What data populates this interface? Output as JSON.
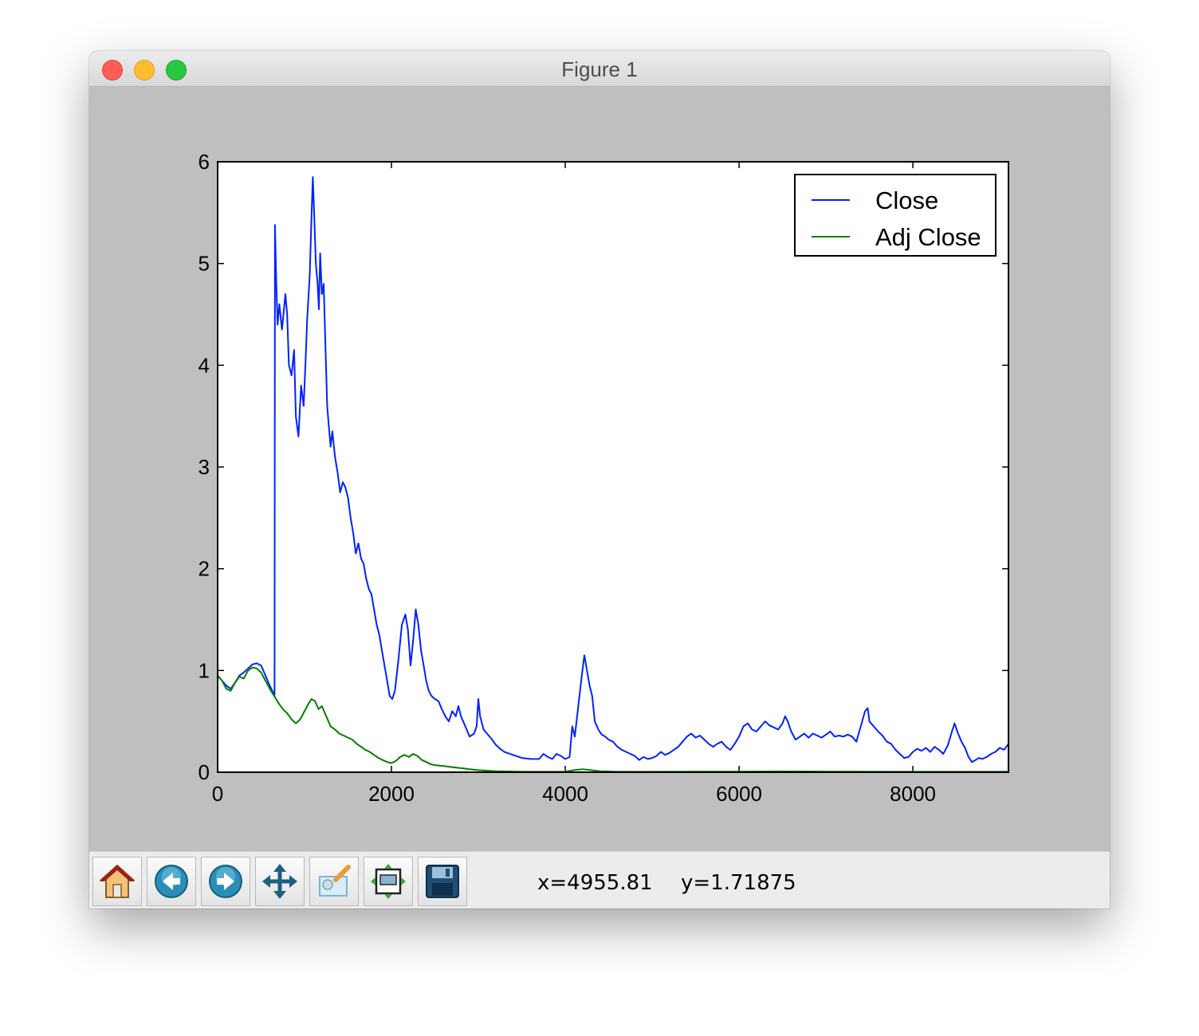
{
  "window": {
    "title": "Figure 1",
    "controls": [
      "close",
      "minimize",
      "zoom"
    ]
  },
  "chart_data": {
    "type": "line",
    "title": "",
    "xlabel": "",
    "ylabel": "",
    "xlim": [
      0,
      9100
    ],
    "ylim": [
      0,
      6
    ],
    "xticks": [
      "0",
      "2000",
      "4000",
      "6000",
      "8000"
    ],
    "yticks": [
      "0",
      "1",
      "2",
      "3",
      "4",
      "5",
      "6"
    ],
    "grid": false,
    "legend_position": "top-right",
    "series": [
      {
        "name": "Close",
        "color": "#0022ff",
        "points": [
          [
            0,
            0.95
          ],
          [
            50,
            0.9
          ],
          [
            100,
            0.85
          ],
          [
            150,
            0.82
          ],
          [
            200,
            0.88
          ],
          [
            250,
            0.95
          ],
          [
            300,
            0.98
          ],
          [
            350,
            1.02
          ],
          [
            400,
            1.06
          ],
          [
            450,
            1.07
          ],
          [
            500,
            1.05
          ],
          [
            550,
            0.95
          ],
          [
            600,
            0.85
          ],
          [
            640,
            0.78
          ],
          [
            655,
            0.76
          ],
          [
            660,
            5.38
          ],
          [
            675,
            4.8
          ],
          [
            690,
            4.4
          ],
          [
            710,
            4.6
          ],
          [
            740,
            4.35
          ],
          [
            780,
            4.7
          ],
          [
            800,
            4.5
          ],
          [
            820,
            4.0
          ],
          [
            850,
            3.9
          ],
          [
            880,
            4.15
          ],
          [
            900,
            3.5
          ],
          [
            930,
            3.3
          ],
          [
            960,
            3.8
          ],
          [
            990,
            3.6
          ],
          [
            1010,
            4.0
          ],
          [
            1030,
            4.45
          ],
          [
            1060,
            4.9
          ],
          [
            1080,
            5.45
          ],
          [
            1095,
            5.85
          ],
          [
            1110,
            5.5
          ],
          [
            1130,
            5.0
          ],
          [
            1150,
            4.8
          ],
          [
            1165,
            4.55
          ],
          [
            1180,
            5.1
          ],
          [
            1200,
            4.7
          ],
          [
            1220,
            4.8
          ],
          [
            1240,
            4.2
          ],
          [
            1260,
            3.6
          ],
          [
            1280,
            3.4
          ],
          [
            1300,
            3.2
          ],
          [
            1320,
            3.35
          ],
          [
            1350,
            3.1
          ],
          [
            1380,
            2.95
          ],
          [
            1410,
            2.75
          ],
          [
            1440,
            2.85
          ],
          [
            1470,
            2.8
          ],
          [
            1500,
            2.7
          ],
          [
            1530,
            2.5
          ],
          [
            1560,
            2.35
          ],
          [
            1590,
            2.15
          ],
          [
            1620,
            2.25
          ],
          [
            1650,
            2.1
          ],
          [
            1680,
            2.05
          ],
          [
            1710,
            1.9
          ],
          [
            1740,
            1.8
          ],
          [
            1770,
            1.75
          ],
          [
            1800,
            1.6
          ],
          [
            1830,
            1.45
          ],
          [
            1860,
            1.35
          ],
          [
            1890,
            1.2
          ],
          [
            1920,
            1.05
          ],
          [
            1950,
            0.9
          ],
          [
            1980,
            0.75
          ],
          [
            2010,
            0.72
          ],
          [
            2040,
            0.8
          ],
          [
            2080,
            1.1
          ],
          [
            2120,
            1.45
          ],
          [
            2160,
            1.55
          ],
          [
            2190,
            1.4
          ],
          [
            2220,
            1.05
          ],
          [
            2250,
            1.3
          ],
          [
            2280,
            1.6
          ],
          [
            2310,
            1.45
          ],
          [
            2340,
            1.2
          ],
          [
            2370,
            1.05
          ],
          [
            2400,
            0.9
          ],
          [
            2430,
            0.8
          ],
          [
            2460,
            0.75
          ],
          [
            2500,
            0.72
          ],
          [
            2540,
            0.7
          ],
          [
            2580,
            0.62
          ],
          [
            2620,
            0.55
          ],
          [
            2660,
            0.5
          ],
          [
            2700,
            0.6
          ],
          [
            2740,
            0.55
          ],
          [
            2770,
            0.65
          ],
          [
            2800,
            0.55
          ],
          [
            2850,
            0.45
          ],
          [
            2900,
            0.35
          ],
          [
            2950,
            0.38
          ],
          [
            2980,
            0.45
          ],
          [
            3000,
            0.72
          ],
          [
            3020,
            0.55
          ],
          [
            3060,
            0.42
          ],
          [
            3100,
            0.38
          ],
          [
            3150,
            0.33
          ],
          [
            3200,
            0.27
          ],
          [
            3250,
            0.23
          ],
          [
            3300,
            0.2
          ],
          [
            3400,
            0.17
          ],
          [
            3500,
            0.14
          ],
          [
            3600,
            0.13
          ],
          [
            3700,
            0.13
          ],
          [
            3750,
            0.18
          ],
          [
            3800,
            0.15
          ],
          [
            3850,
            0.13
          ],
          [
            3900,
            0.18
          ],
          [
            3950,
            0.16
          ],
          [
            4000,
            0.13
          ],
          [
            4050,
            0.15
          ],
          [
            4080,
            0.45
          ],
          [
            4110,
            0.35
          ],
          [
            4150,
            0.65
          ],
          [
            4190,
            0.95
          ],
          [
            4220,
            1.15
          ],
          [
            4250,
            1.0
          ],
          [
            4280,
            0.85
          ],
          [
            4310,
            0.75
          ],
          [
            4340,
            0.5
          ],
          [
            4380,
            0.42
          ],
          [
            4420,
            0.37
          ],
          [
            4460,
            0.35
          ],
          [
            4500,
            0.32
          ],
          [
            4550,
            0.3
          ],
          [
            4600,
            0.25
          ],
          [
            4650,
            0.22
          ],
          [
            4700,
            0.2
          ],
          [
            4750,
            0.18
          ],
          [
            4800,
            0.16
          ],
          [
            4850,
            0.12
          ],
          [
            4900,
            0.15
          ],
          [
            4950,
            0.13
          ],
          [
            5000,
            0.14
          ],
          [
            5050,
            0.16
          ],
          [
            5100,
            0.2
          ],
          [
            5150,
            0.17
          ],
          [
            5200,
            0.19
          ],
          [
            5250,
            0.22
          ],
          [
            5300,
            0.25
          ],
          [
            5350,
            0.3
          ],
          [
            5400,
            0.35
          ],
          [
            5450,
            0.38
          ],
          [
            5500,
            0.34
          ],
          [
            5550,
            0.36
          ],
          [
            5600,
            0.32
          ],
          [
            5650,
            0.28
          ],
          [
            5700,
            0.25
          ],
          [
            5750,
            0.28
          ],
          [
            5800,
            0.3
          ],
          [
            5850,
            0.25
          ],
          [
            5900,
            0.22
          ],
          [
            5950,
            0.28
          ],
          [
            6000,
            0.35
          ],
          [
            6050,
            0.45
          ],
          [
            6100,
            0.48
          ],
          [
            6150,
            0.42
          ],
          [
            6200,
            0.4
          ],
          [
            6250,
            0.45
          ],
          [
            6300,
            0.5
          ],
          [
            6350,
            0.46
          ],
          [
            6400,
            0.44
          ],
          [
            6450,
            0.42
          ],
          [
            6500,
            0.48
          ],
          [
            6530,
            0.55
          ],
          [
            6560,
            0.5
          ],
          [
            6600,
            0.4
          ],
          [
            6650,
            0.32
          ],
          [
            6700,
            0.35
          ],
          [
            6750,
            0.38
          ],
          [
            6800,
            0.34
          ],
          [
            6850,
            0.38
          ],
          [
            6900,
            0.36
          ],
          [
            6950,
            0.34
          ],
          [
            7000,
            0.37
          ],
          [
            7050,
            0.4
          ],
          [
            7100,
            0.35
          ],
          [
            7150,
            0.36
          ],
          [
            7200,
            0.35
          ],
          [
            7250,
            0.37
          ],
          [
            7300,
            0.35
          ],
          [
            7350,
            0.3
          ],
          [
            7400,
            0.45
          ],
          [
            7450,
            0.6
          ],
          [
            7480,
            0.63
          ],
          [
            7500,
            0.5
          ],
          [
            7550,
            0.45
          ],
          [
            7600,
            0.4
          ],
          [
            7650,
            0.36
          ],
          [
            7700,
            0.3
          ],
          [
            7750,
            0.28
          ],
          [
            7800,
            0.22
          ],
          [
            7850,
            0.18
          ],
          [
            7900,
            0.14
          ],
          [
            7950,
            0.15
          ],
          [
            8000,
            0.2
          ],
          [
            8050,
            0.23
          ],
          [
            8100,
            0.21
          ],
          [
            8150,
            0.24
          ],
          [
            8200,
            0.2
          ],
          [
            8250,
            0.25
          ],
          [
            8300,
            0.22
          ],
          [
            8350,
            0.18
          ],
          [
            8400,
            0.26
          ],
          [
            8450,
            0.4
          ],
          [
            8480,
            0.48
          ],
          [
            8520,
            0.38
          ],
          [
            8560,
            0.3
          ],
          [
            8600,
            0.24
          ],
          [
            8640,
            0.15
          ],
          [
            8680,
            0.1
          ],
          [
            8720,
            0.12
          ],
          [
            8760,
            0.14
          ],
          [
            8800,
            0.13
          ],
          [
            8850,
            0.15
          ],
          [
            8900,
            0.18
          ],
          [
            8950,
            0.2
          ],
          [
            9000,
            0.24
          ],
          [
            9050,
            0.22
          ],
          [
            9100,
            0.28
          ]
        ]
      },
      {
        "name": "Adj Close",
        "color": "#007f00",
        "points": [
          [
            0,
            0.95
          ],
          [
            50,
            0.9
          ],
          [
            100,
            0.82
          ],
          [
            150,
            0.8
          ],
          [
            200,
            0.88
          ],
          [
            250,
            0.94
          ],
          [
            300,
            0.92
          ],
          [
            350,
            1.0
          ],
          [
            400,
            1.03
          ],
          [
            450,
            1.02
          ],
          [
            500,
            0.98
          ],
          [
            550,
            0.9
          ],
          [
            600,
            0.82
          ],
          [
            650,
            0.75
          ],
          [
            700,
            0.68
          ],
          [
            750,
            0.62
          ],
          [
            800,
            0.58
          ],
          [
            850,
            0.52
          ],
          [
            900,
            0.48
          ],
          [
            950,
            0.52
          ],
          [
            1000,
            0.6
          ],
          [
            1050,
            0.68
          ],
          [
            1080,
            0.72
          ],
          [
            1120,
            0.7
          ],
          [
            1160,
            0.62
          ],
          [
            1200,
            0.65
          ],
          [
            1250,
            0.55
          ],
          [
            1300,
            0.45
          ],
          [
            1350,
            0.42
          ],
          [
            1400,
            0.38
          ],
          [
            1450,
            0.36
          ],
          [
            1500,
            0.34
          ],
          [
            1550,
            0.32
          ],
          [
            1600,
            0.28
          ],
          [
            1650,
            0.25
          ],
          [
            1700,
            0.22
          ],
          [
            1750,
            0.2
          ],
          [
            1800,
            0.17
          ],
          [
            1850,
            0.14
          ],
          [
            1900,
            0.12
          ],
          [
            1950,
            0.1
          ],
          [
            2000,
            0.09
          ],
          [
            2050,
            0.11
          ],
          [
            2100,
            0.15
          ],
          [
            2150,
            0.17
          ],
          [
            2200,
            0.15
          ],
          [
            2250,
            0.18
          ],
          [
            2300,
            0.16
          ],
          [
            2350,
            0.12
          ],
          [
            2400,
            0.1
          ],
          [
            2450,
            0.08
          ],
          [
            2500,
            0.07
          ],
          [
            2600,
            0.06
          ],
          [
            2700,
            0.05
          ],
          [
            2800,
            0.04
          ],
          [
            2900,
            0.03
          ],
          [
            3000,
            0.02
          ],
          [
            3200,
            0.01
          ],
          [
            3500,
            0.005
          ],
          [
            4000,
            0.005
          ],
          [
            4100,
            0.02
          ],
          [
            4200,
            0.03
          ],
          [
            4300,
            0.02
          ],
          [
            4400,
            0.01
          ],
          [
            4600,
            0.005
          ],
          [
            5000,
            0.005
          ],
          [
            6000,
            0.006
          ],
          [
            6500,
            0.008
          ],
          [
            7000,
            0.006
          ],
          [
            8000,
            0.005
          ],
          [
            9100,
            0.005
          ]
        ]
      }
    ]
  },
  "toolbar": {
    "buttons": [
      {
        "name": "home-icon",
        "tooltip": "Reset original view"
      },
      {
        "name": "back-icon",
        "tooltip": "Back"
      },
      {
        "name": "forward-icon",
        "tooltip": "Forward"
      },
      {
        "name": "pan-icon",
        "tooltip": "Pan"
      },
      {
        "name": "zoom-rect-icon",
        "tooltip": "Zoom"
      },
      {
        "name": "subplots-icon",
        "tooltip": "Configure subplots"
      },
      {
        "name": "save-icon",
        "tooltip": "Save"
      }
    ],
    "x_readout": "x=4955.81",
    "y_readout": "y=1.71875"
  }
}
